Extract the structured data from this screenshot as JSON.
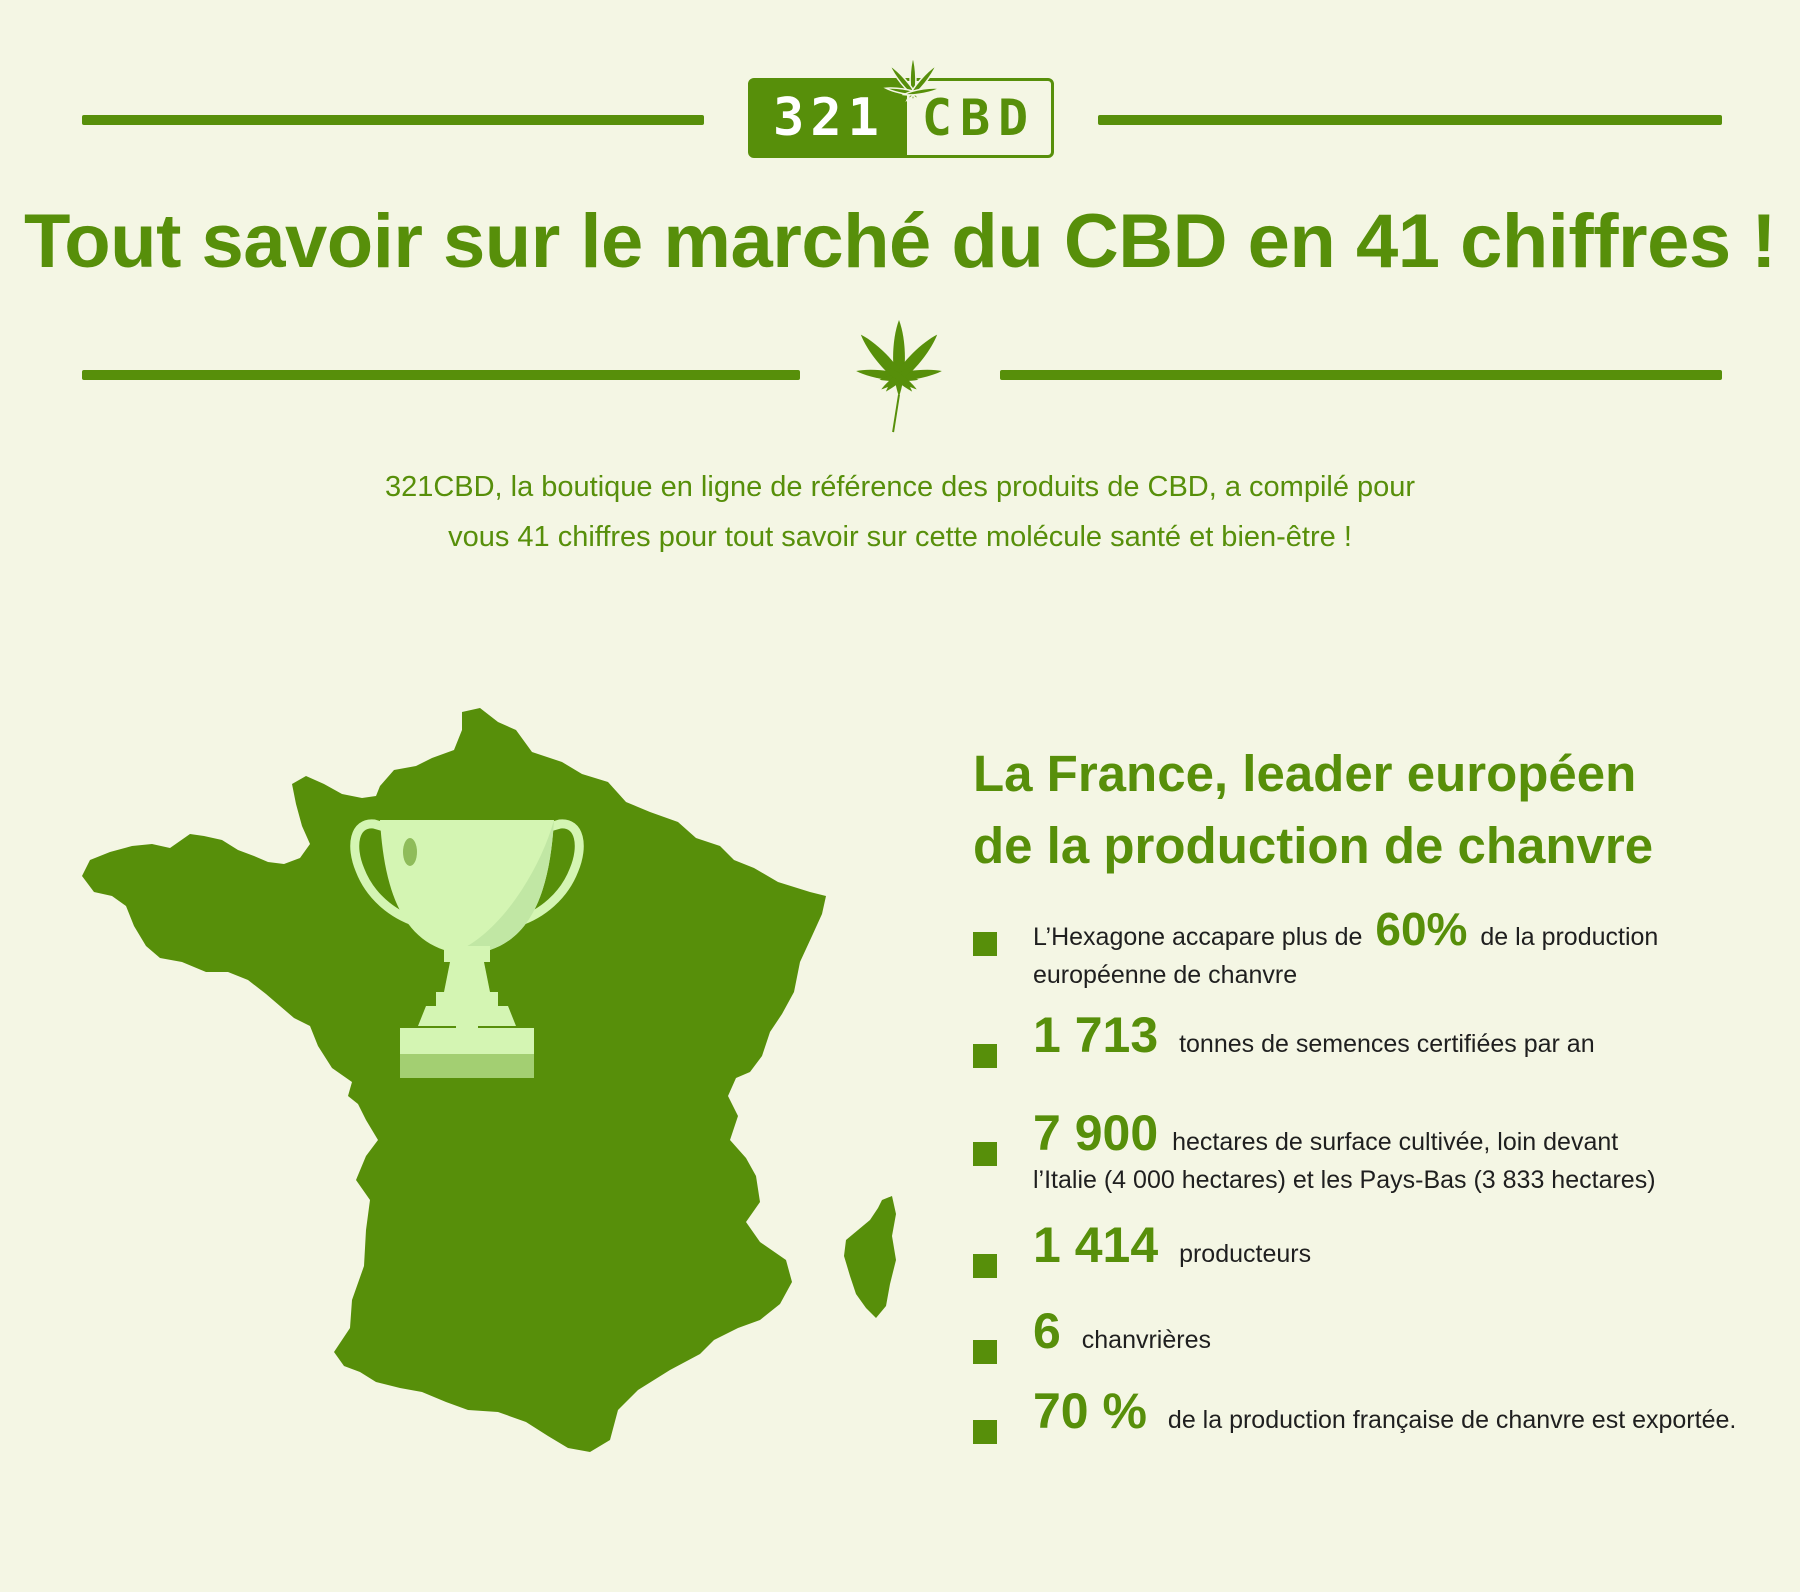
{
  "logo": {
    "left": "321",
    "right": "CBD"
  },
  "title": "Tout savoir sur le marché du CBD en 41 chiffres !",
  "intro": {
    "line1": "321CBD, la boutique en ligne de référence des produits de CBD, a compilé pour",
    "line2": "vous 41 chiffres pour tout savoir sur cette molécule santé et bien-être !"
  },
  "section": {
    "title_line1": "La France, leader européen",
    "title_line2": "de la production de chanvre"
  },
  "stats": [
    {
      "pre": "L’Hexagone accapare plus de",
      "value": "60%",
      "post": "de la production",
      "line2": "européenne de chanvre"
    },
    {
      "value": "1 713",
      "post": "tonnes de semences certifiées par an"
    },
    {
      "value": "7 900",
      "post": "hectares de surface cultivée, loin devant",
      "line2": "l’Italie (4 000 hectares) et les Pays-Bas (3 833 hectares)"
    },
    {
      "value": "1 414",
      "post": "producteurs"
    },
    {
      "value": "6",
      "post": "chanvrières"
    },
    {
      "value": "70 %",
      "post": "de la production française de chanvre est exportée."
    }
  ],
  "colors": {
    "accent": "#578f0a",
    "background": "#f4f6e4",
    "trophy": "#d4f5b3",
    "text": "#1f1f1f"
  },
  "icons": [
    "cannabis-leaf-icon",
    "france-map-icon",
    "trophy-icon",
    "bullet-square-icon"
  ]
}
